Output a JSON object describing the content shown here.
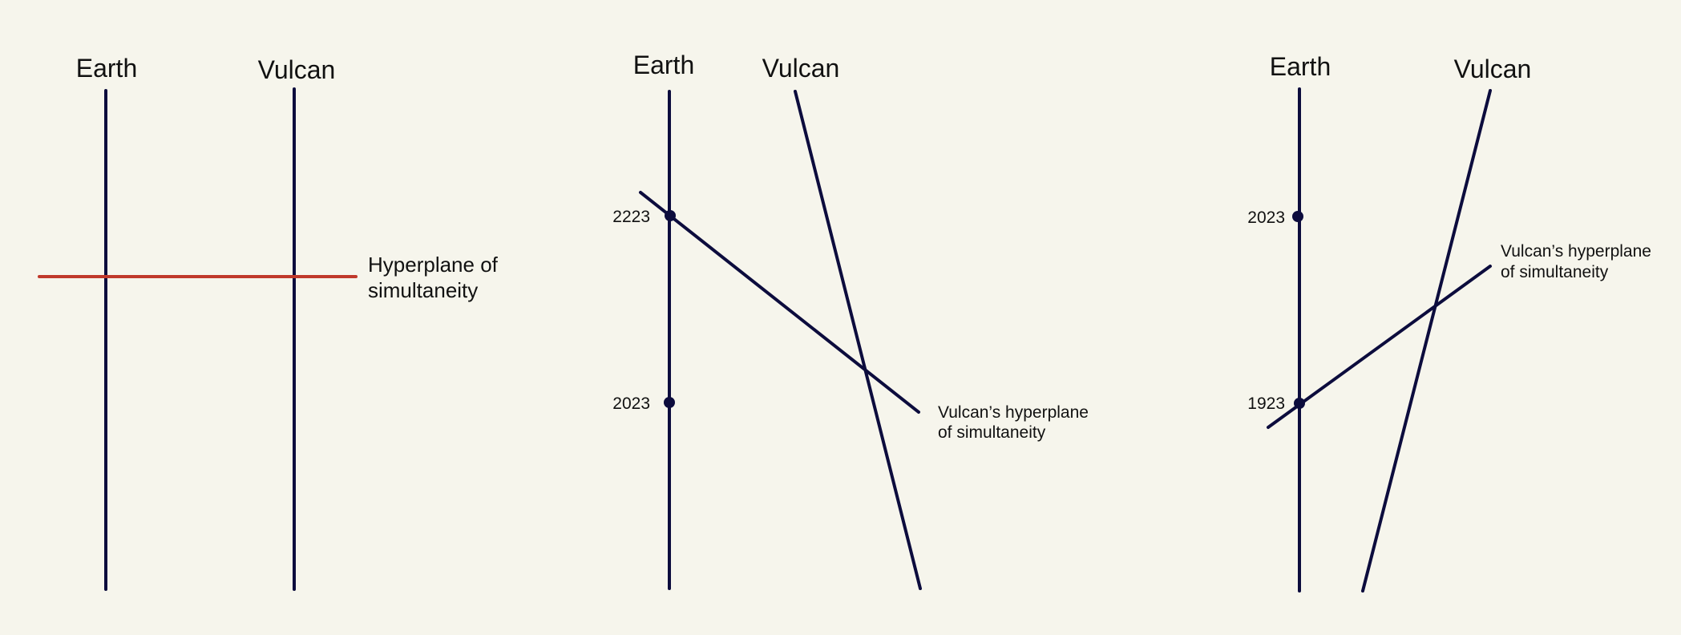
{
  "colors": {
    "background": "#f6f5ec",
    "worldline": "#0c0c3d",
    "hyperplane_red": "#c0392b"
  },
  "panel1": {
    "earth_label": "Earth",
    "vulcan_label": "Vulcan",
    "hyperplane_label_line1": "Hyperplane of",
    "hyperplane_label_line2": "simultaneity"
  },
  "panel2": {
    "earth_label": "Earth",
    "vulcan_label": "Vulcan",
    "year_upper": "2223",
    "year_lower": "2023",
    "hyperplane_label_line1": "Vulcan’s hyperplane",
    "hyperplane_label_line2": "of simultaneity"
  },
  "panel3": {
    "earth_label": "Earth",
    "vulcan_label": "Vulcan",
    "year_upper": "2023",
    "year_lower": "1923",
    "hyperplane_label_line1": "Vulcan’s hyperplane",
    "hyperplane_label_line2": "of simultaneity"
  }
}
